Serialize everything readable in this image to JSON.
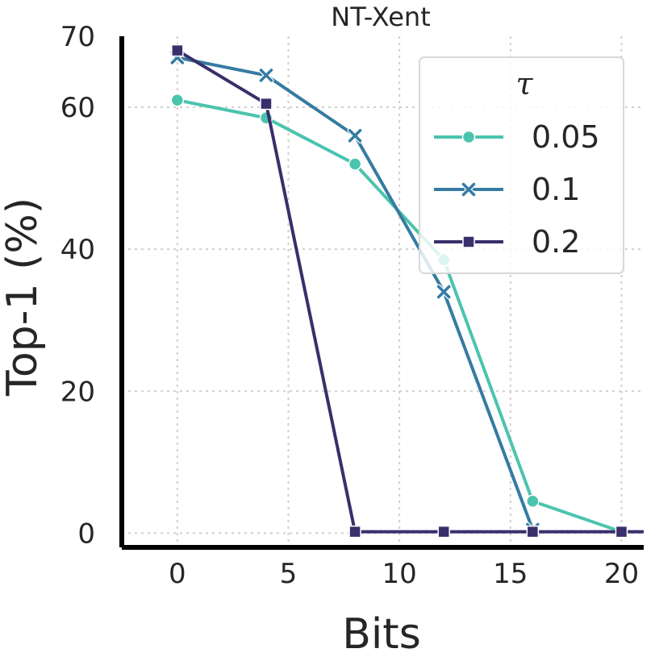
{
  "chart_data": {
    "type": "line",
    "title": "NT-Xent",
    "xlabel": "Bits",
    "ylabel": "Top-1 (%)",
    "xlim": [
      -2.5,
      21
    ],
    "ylim": [
      -2,
      70
    ],
    "xticks": [
      0,
      5,
      10,
      15,
      20
    ],
    "yticks": [
      0,
      20,
      40,
      60,
      70
    ],
    "grid": true,
    "legend": {
      "title": "τ",
      "placement": "top-right"
    },
    "x": [
      0,
      4,
      8,
      12,
      16,
      20
    ],
    "series": [
      {
        "name": "0.05",
        "marker": "circle",
        "color": "#4cc4ad",
        "x": [
          0,
          4,
          8,
          12,
          16,
          20
        ],
        "values": [
          61,
          58.5,
          52,
          38.5,
          4.5,
          0.2
        ]
      },
      {
        "name": "0.1",
        "marker": "x",
        "color": "#357ba2",
        "x": [
          0,
          4,
          8,
          12,
          16
        ],
        "values": [
          67,
          64.5,
          56,
          34,
          0.5
        ]
      },
      {
        "name": "0.2",
        "marker": "square",
        "color": "#3a2f6b",
        "x": [
          0,
          4,
          8,
          12,
          16,
          20,
          21
        ],
        "values": [
          68,
          60.5,
          0.2,
          0.2,
          0.2,
          0.2,
          0.2
        ]
      }
    ]
  }
}
